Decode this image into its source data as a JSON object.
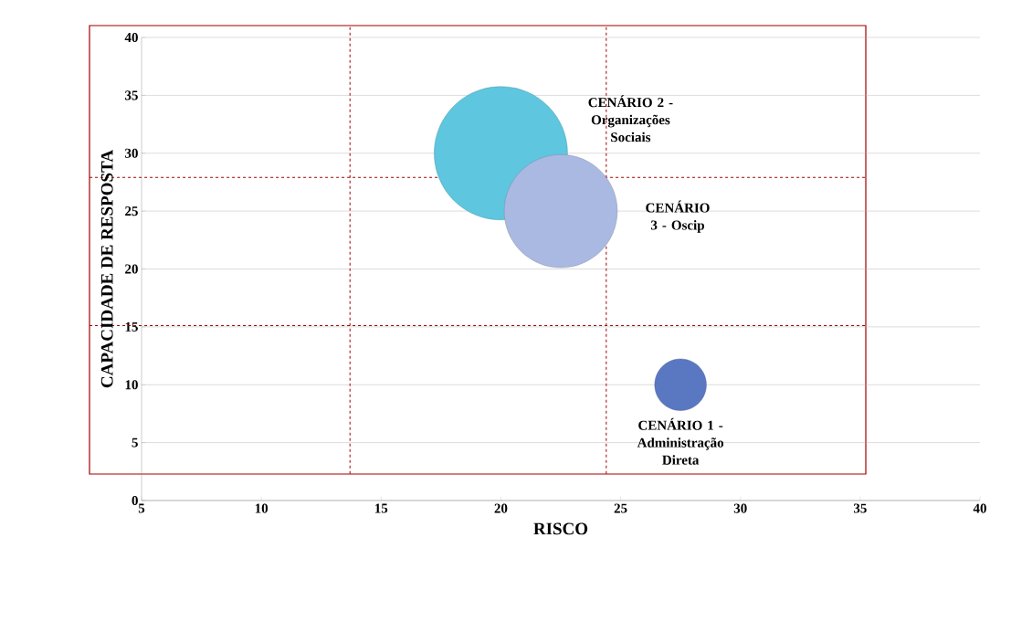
{
  "chart_data": {
    "type": "bubble",
    "xlabel": "RISCO",
    "ylabel": "CAPACIDADE DE RESPOSTA",
    "xlim": [
      5,
      40
    ],
    "ylim": [
      0,
      40
    ],
    "xticks": [
      5,
      10,
      15,
      20,
      25,
      30,
      35,
      40
    ],
    "yticks": [
      0,
      5,
      10,
      15,
      20,
      25,
      30,
      35,
      40
    ],
    "grid": "y",
    "series": [
      {
        "name": "CENÁRIO 2 - Organizações Sociais",
        "color": "#5ec6df",
        "x": [
          20
        ],
        "values": [
          30
        ],
        "sizes": [
          1
        ]
      },
      {
        "name": "CENÁRIO 3 - Oscip",
        "color": "#a9b9e2",
        "x": [
          22.5
        ],
        "values": [
          25
        ],
        "sizes": [
          0.72
        ]
      },
      {
        "name": "CENÁRIO 1 - Administração Direta",
        "color": "#5a78c2",
        "x": [
          27.5
        ],
        "values": [
          10
        ],
        "sizes": [
          0.15
        ]
      }
    ],
    "ref_lines": [
      {
        "axis": "x",
        "value": 13.7,
        "color": "#a00000",
        "line_style": "dashed"
      },
      {
        "axis": "x",
        "value": 24.4,
        "color": "#a00000",
        "line_style": "dashed"
      },
      {
        "axis": "y",
        "value": 27.9,
        "color": "#a00000",
        "line_style": "dashed"
      },
      {
        "axis": "y",
        "value": 15.1,
        "color": "#a00000",
        "line_style": "dashed"
      }
    ]
  }
}
